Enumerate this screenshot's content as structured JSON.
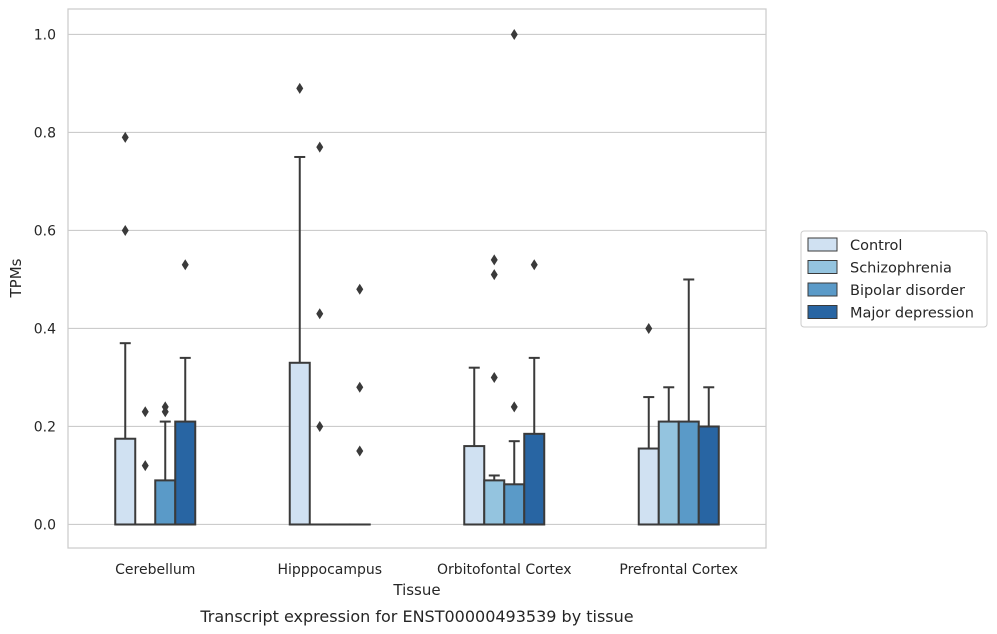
{
  "chart_data": {
    "type": "box",
    "caption": "Transcript expression for ENST00000493539 by tissue",
    "xlabel": "Tissue",
    "ylabel": "TPMs",
    "ylim": [
      -0.048,
      1.052
    ],
    "yticks": [
      "0.0",
      "0.2",
      "0.4",
      "0.6",
      "0.8",
      "1.0"
    ],
    "grid": true,
    "legend_position": "right",
    "categories": [
      "Cerebellum",
      "Hipppocampus",
      "Orbitofontal Cortex",
      "Prefrontal Cortex"
    ],
    "series": [
      {
        "name": "Control",
        "color": "#d0e1f2",
        "boxes": [
          {
            "whisker_low": 0.0,
            "q1": 0.0,
            "median": 0.0,
            "q3": 0.175,
            "whisker_high": 0.37,
            "outliers": [
              0.6,
              0.79
            ]
          },
          {
            "whisker_low": 0.0,
            "q1": 0.0,
            "median": 0.0,
            "q3": 0.33,
            "whisker_high": 0.75,
            "outliers": [
              0.89
            ]
          },
          {
            "whisker_low": 0.0,
            "q1": 0.0,
            "median": 0.0,
            "q3": 0.16,
            "whisker_high": 0.32,
            "outliers": []
          },
          {
            "whisker_low": 0.0,
            "q1": 0.0,
            "median": 0.0,
            "q3": 0.155,
            "whisker_high": 0.26,
            "outliers": [
              0.4
            ]
          }
        ]
      },
      {
        "name": "Schizophrenia",
        "color": "#94c4df",
        "boxes": [
          {
            "whisker_low": 0.0,
            "q1": 0.0,
            "median": 0.0,
            "q3": 0.0,
            "whisker_high": 0.0,
            "outliers": [
              0.12,
              0.23
            ]
          },
          {
            "whisker_low": 0.0,
            "q1": 0.0,
            "median": 0.0,
            "q3": 0.0,
            "whisker_high": 0.0,
            "outliers": [
              0.2,
              0.43,
              0.77
            ]
          },
          {
            "whisker_low": 0.0,
            "q1": 0.0,
            "median": 0.0,
            "q3": 0.09,
            "whisker_high": 0.1,
            "outliers": [
              0.3,
              0.51,
              0.54
            ]
          },
          {
            "whisker_low": 0.0,
            "q1": 0.0,
            "median": 0.0,
            "q3": 0.21,
            "whisker_high": 0.28,
            "outliers": []
          }
        ]
      },
      {
        "name": "Bipolar disorder",
        "color": "#5a9ac8",
        "boxes": [
          {
            "whisker_low": 0.0,
            "q1": 0.0,
            "median": 0.0,
            "q3": 0.09,
            "whisker_high": 0.21,
            "outliers": [
              0.23,
              0.24
            ]
          },
          {
            "whisker_low": 0.0,
            "q1": 0.0,
            "median": 0.0,
            "q3": 0.0,
            "whisker_high": 0.0,
            "outliers": []
          },
          {
            "whisker_low": 0.0,
            "q1": 0.0,
            "median": 0.0,
            "q3": 0.082,
            "whisker_high": 0.17,
            "outliers": [
              0.24,
              1.0
            ]
          },
          {
            "whisker_low": 0.0,
            "q1": 0.0,
            "median": 0.0,
            "q3": 0.21,
            "whisker_high": 0.5,
            "outliers": []
          }
        ]
      },
      {
        "name": "Major depression",
        "color": "#2865a3",
        "boxes": [
          {
            "whisker_low": 0.0,
            "q1": 0.0,
            "median": 0.0,
            "q3": 0.21,
            "whisker_high": 0.34,
            "outliers": [
              0.53
            ]
          },
          {
            "whisker_low": 0.0,
            "q1": 0.0,
            "median": 0.0,
            "q3": 0.0,
            "whisker_high": 0.0,
            "outliers": [
              0.15,
              0.28,
              0.48
            ]
          },
          {
            "whisker_low": 0.0,
            "q1": 0.0,
            "median": 0.0,
            "q3": 0.185,
            "whisker_high": 0.34,
            "outliers": [
              0.53
            ]
          },
          {
            "whisker_low": 0.0,
            "q1": 0.0,
            "median": 0.0,
            "q3": 0.2,
            "whisker_high": 0.28,
            "outliers": []
          }
        ]
      }
    ]
  }
}
